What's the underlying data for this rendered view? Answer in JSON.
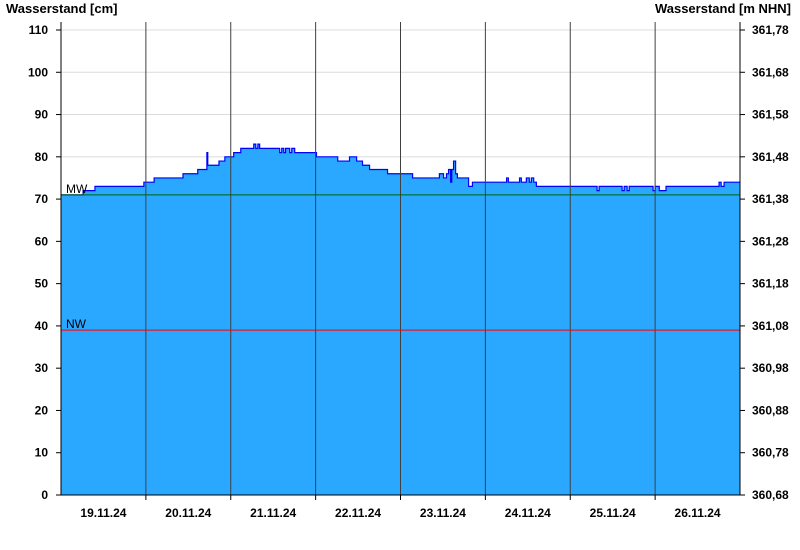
{
  "chart_data": {
    "type": "area",
    "ylabel_left": "Wasserstand [cm]",
    "ylabel_right": "Wasserstand [m NHN]",
    "ylim": [
      0,
      110
    ],
    "yticks_left": [
      "0",
      "10",
      "20",
      "30",
      "40",
      "50",
      "60",
      "70",
      "80",
      "90",
      "100",
      "110"
    ],
    "yticks_right": [
      "360,68",
      "360,78",
      "360,88",
      "360,98",
      "361,08",
      "361,18",
      "361,28",
      "361,38",
      "361,48",
      "361,58",
      "361,68",
      "361,78"
    ],
    "xlim": [
      "19.11.24 00:00",
      "27.11.24 00:00"
    ],
    "xticks": [
      "19.11.24",
      "20.11.24",
      "21.11.24",
      "22.11.24",
      "23.11.24",
      "24.11.24",
      "25.11.24",
      "26.11.24"
    ],
    "grid": true,
    "colors": {
      "fill": "#2aa8ff",
      "line": "#0000ff",
      "mw": "#006400",
      "nw": "#ff0000",
      "grid": "#dcdcdc",
      "daylines": "#404040"
    },
    "reference_lines": [
      {
        "label": "MW",
        "value": 71
      },
      {
        "label": "NW",
        "value": 39
      }
    ],
    "series": [
      {
        "step": true,
        "points": [
          [
            "19.11.24 00:00",
            71
          ],
          [
            "19.11.24 06:15",
            72
          ],
          [
            "19.11.24 09:36",
            73
          ],
          [
            "19.11.24 23:26",
            74
          ],
          [
            "20.11.24 02:20",
            75
          ],
          [
            "20.11.24 10:30",
            76
          ],
          [
            "20.11.24 14:40",
            77
          ],
          [
            "20.11.24 17:15",
            81
          ],
          [
            "20.11.24 17:30",
            78
          ],
          [
            "20.11.24 20:40",
            79
          ],
          [
            "20.11.24 22:20",
            80
          ],
          [
            "21.11.24 00:50",
            81
          ],
          [
            "21.11.24 02:50",
            82
          ],
          [
            "21.11.24 06:30",
            83
          ],
          [
            "21.11.24 07:05",
            82
          ],
          [
            "21.11.24 07:40",
            83
          ],
          [
            "21.11.24 08:10",
            82
          ],
          [
            "21.11.24 13:50",
            81
          ],
          [
            "21.11.24 14:25",
            82
          ],
          [
            "21.11.24 15:00",
            81
          ],
          [
            "21.11.24 15:30",
            82
          ],
          [
            "21.11.24 16:40",
            81
          ],
          [
            "21.11.24 17:15",
            82
          ],
          [
            "21.11.24 18:05",
            81
          ],
          [
            "22.11.24 00:15",
            80
          ],
          [
            "22.11.24 06:15",
            79
          ],
          [
            "22.11.24 09:35",
            80
          ],
          [
            "22.11.24 11:35",
            79
          ],
          [
            "22.11.24 13:15",
            78
          ],
          [
            "22.11.24 15:15",
            77
          ],
          [
            "22.11.24 20:20",
            76
          ],
          [
            "23.11.24 03:25",
            75
          ],
          [
            "23.11.24 11:00",
            76
          ],
          [
            "23.11.24 12:10",
            75
          ],
          [
            "23.11.24 13:00",
            76
          ],
          [
            "23.11.24 13:35",
            77
          ],
          [
            "23.11.24 14:10",
            74
          ],
          [
            "23.11.24 14:30",
            77
          ],
          [
            "23.11.24 15:00",
            79
          ],
          [
            "23.11.24 15:35",
            76
          ],
          [
            "23.11.24 16:05",
            75
          ],
          [
            "23.11.24 19:15",
            73
          ],
          [
            "23.11.24 20:20",
            74
          ],
          [
            "24.11.24 06:00",
            75
          ],
          [
            "24.11.24 06:30",
            74
          ],
          [
            "24.11.24 09:40",
            75
          ],
          [
            "24.11.24 10:10",
            74
          ],
          [
            "24.11.24 11:35",
            75
          ],
          [
            "24.11.24 12:25",
            74
          ],
          [
            "24.11.24 13:00",
            75
          ],
          [
            "24.11.24 13:40",
            74
          ],
          [
            "24.11.24 14:25",
            73
          ],
          [
            "25.11.24 07:35",
            72
          ],
          [
            "25.11.24 08:10",
            73
          ],
          [
            "25.11.24 14:40",
            72
          ],
          [
            "25.11.24 15:15",
            73
          ],
          [
            "25.11.24 16:05",
            72
          ],
          [
            "25.11.24 16:40",
            73
          ],
          [
            "25.11.24 23:25",
            72
          ],
          [
            "26.11.24 00:00",
            73
          ],
          [
            "26.11.24 01:10",
            72
          ],
          [
            "26.11.24 03:05",
            73
          ],
          [
            "26.11.24 18:05",
            74
          ],
          [
            "26.11.24 18:40",
            73
          ],
          [
            "26.11.24 19:30",
            74
          ],
          [
            "26.11.24 23:40",
            74
          ]
        ]
      }
    ]
  }
}
